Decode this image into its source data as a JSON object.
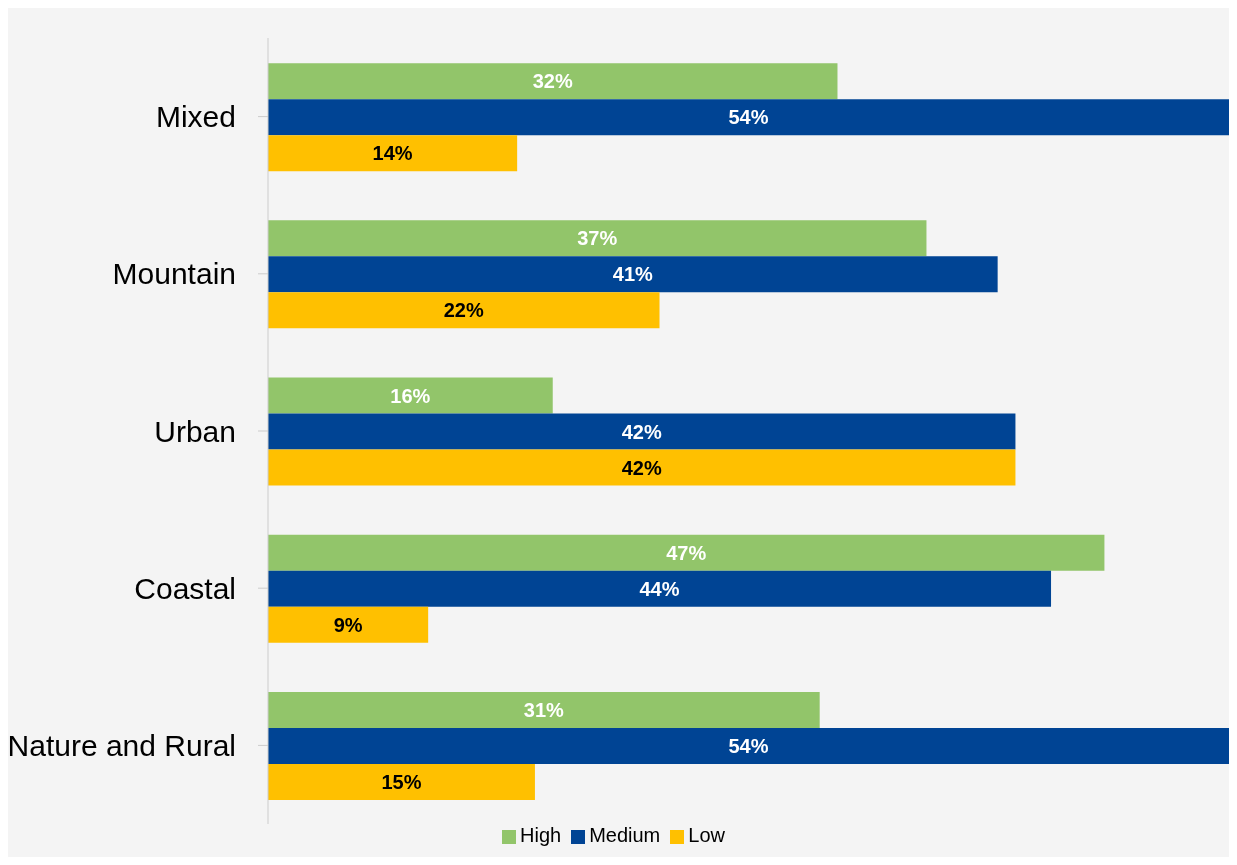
{
  "chart_data": {
    "type": "bar",
    "orientation": "horizontal",
    "categories": [
      "Mixed",
      "Mountain",
      "Urban",
      "Coastal",
      "Nature and Rural"
    ],
    "series": [
      {
        "name": "High",
        "color": "#92c56a",
        "values": [
          32,
          37,
          16,
          47,
          31
        ],
        "value_labels": [
          "32%",
          "37%",
          "16%",
          "47%",
          "31%"
        ]
      },
      {
        "name": "Medium",
        "color": "#004494",
        "values": [
          54,
          41,
          42,
          44,
          54
        ],
        "value_labels": [
          "54%",
          "41%",
          "42%",
          "44%",
          "54%"
        ]
      },
      {
        "name": "Low",
        "color": "#ffc000",
        "values": [
          14,
          22,
          42,
          9,
          15
        ],
        "value_labels": [
          "14%",
          "22%",
          "42%",
          "9%",
          "15%"
        ]
      }
    ],
    "grid": false,
    "legend": "bottom"
  }
}
